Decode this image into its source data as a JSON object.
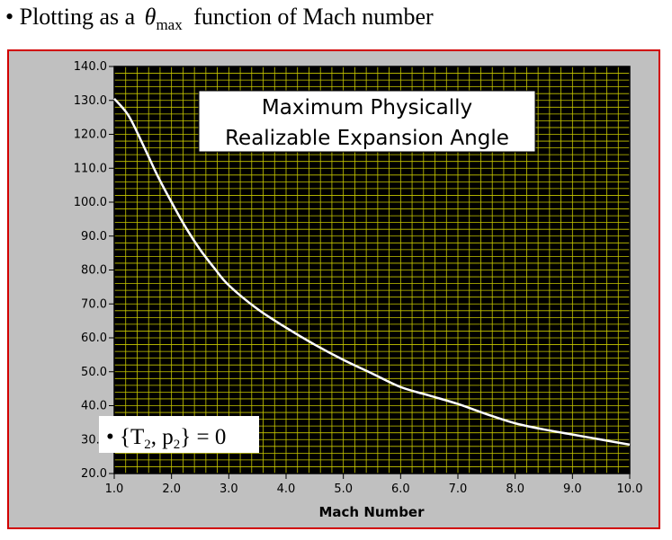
{
  "heading": {
    "prefix": "• Plotting as a",
    "symbol": "θ",
    "subscript": "max",
    "suffix": "function of Mach number"
  },
  "chart_data": {
    "type": "line",
    "title": "Maximum Physically Realizable Expansion Angle",
    "title_lines": [
      "Maximum Physically",
      "Realizable Expansion Angle"
    ],
    "xlabel": "Mach Number",
    "ylabel": "",
    "xlim": [
      1.0,
      10.0
    ],
    "ylim": [
      20.0,
      140.0
    ],
    "x_ticks": [
      "1.0",
      "2.0",
      "3.0",
      "4.0",
      "5.0",
      "6.0",
      "7.0",
      "8.0",
      "9.0",
      "10.0"
    ],
    "y_ticks": [
      "140.0",
      "130.0",
      "120.0",
      "110.0",
      "100.0",
      "90.0",
      "80.0",
      "70.0",
      "60.0",
      "50.0",
      "40.0",
      "30.0",
      "20.0"
    ],
    "grid": true,
    "background_color": "#000000",
    "grid_color": "#c8c800",
    "line_color": "#ffffff",
    "series": [
      {
        "name": "theta_max",
        "x": [
          1.0,
          1.25,
          1.5,
          1.75,
          2.0,
          2.25,
          2.5,
          2.75,
          3.0,
          3.5,
          4.0,
          4.5,
          5.0,
          5.5,
          6.0,
          6.5,
          7.0,
          7.5,
          8.0,
          8.5,
          9.0,
          9.5,
          10.0
        ],
        "y": [
          130.5,
          125.5,
          117.0,
          108.0,
          100.0,
          92.5,
          86.0,
          80.5,
          75.5,
          68.5,
          63.0,
          58.0,
          53.5,
          49.5,
          45.5,
          43.0,
          40.5,
          37.5,
          34.8,
          33.0,
          31.5,
          30.0,
          28.5
        ]
      }
    ],
    "annotation": {
      "bullet": "•",
      "open": "{T",
      "sub1": "2",
      "mid": ", p",
      "sub2": "2",
      "close": "} = 0"
    }
  }
}
